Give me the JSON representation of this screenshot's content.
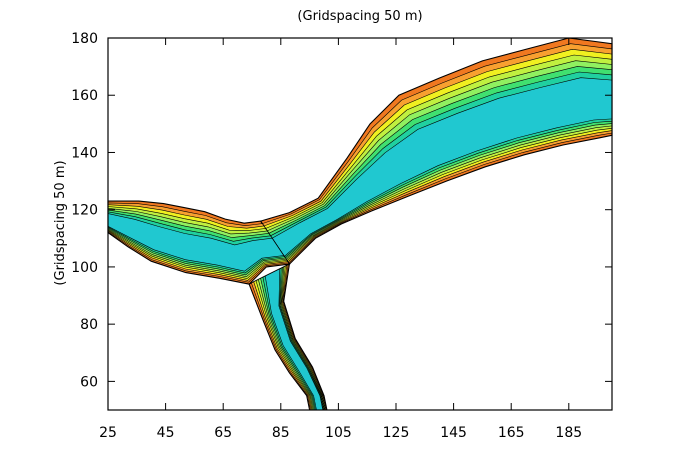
{
  "chart_data": {
    "type": "heatmap",
    "title": "",
    "xlabel": "",
    "ylabel": "(Gridspacing 50 m)",
    "top_label": "(Gridspacing 50 m)",
    "xlim": [
      25,
      200
    ],
    "ylim": [
      50,
      180
    ],
    "x_ticks": [
      25,
      45,
      65,
      85,
      105,
      125,
      145,
      165,
      185
    ],
    "y_ticks": [
      60,
      80,
      100,
      120,
      140,
      160,
      180
    ],
    "grid": false,
    "legend": "none",
    "colors": {
      "deep_orange": "#f07820",
      "orange": "#f8a030",
      "yellow": "#f0f020",
      "yellow_green": "#c0f040",
      "light_green": "#90f060",
      "green": "#40e070",
      "cyan_green": "#20d0a0",
      "cyan": "#20c8d0",
      "contour": "#000000"
    },
    "river_channel": {
      "main_stem": {
        "upper_bank": [
          [
            78,
            116
          ],
          [
            88,
            119
          ],
          [
            98,
            124
          ],
          [
            108,
            138
          ],
          [
            116,
            150
          ],
          [
            126,
            160
          ],
          [
            140,
            166
          ],
          [
            155,
            172
          ],
          [
            170,
            176
          ],
          [
            185,
            180
          ],
          [
            200,
            178
          ]
        ],
        "lower_bank": [
          [
            88,
            101
          ],
          [
            98,
            111
          ],
          [
            108,
            116
          ],
          [
            120,
            121
          ],
          [
            135,
            127
          ],
          [
            150,
            133
          ],
          [
            165,
            138
          ],
          [
            180,
            142
          ],
          [
            195,
            145
          ],
          [
            200,
            146
          ]
        ]
      },
      "left_branch": {
        "upper_bank": [
          [
            25,
            123
          ],
          [
            40,
            123
          ],
          [
            50,
            121
          ],
          [
            60,
            119
          ],
          [
            70,
            115
          ],
          [
            78,
            116
          ]
        ],
        "lower_bank": [
          [
            25,
            112
          ],
          [
            32,
            107
          ],
          [
            40,
            102
          ],
          [
            52,
            98
          ],
          [
            64,
            96
          ],
          [
            74,
            94
          ],
          [
            80,
            100
          ],
          [
            88,
            101
          ]
        ]
      },
      "south_branch": {
        "left_bank": [
          [
            74,
            94
          ],
          [
            79,
            81
          ],
          [
            83,
            71
          ],
          [
            88,
            63
          ],
          [
            94,
            55
          ],
          [
            95,
            50
          ]
        ],
        "right_bank": [
          [
            88,
            101
          ],
          [
            86,
            88
          ],
          [
            90,
            75
          ],
          [
            96,
            65
          ],
          [
            100,
            55
          ],
          [
            101,
            50
          ]
        ]
      }
    }
  }
}
